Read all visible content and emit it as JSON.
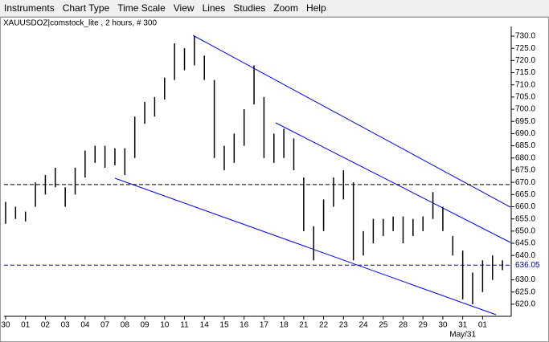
{
  "menu": [
    "Instruments",
    "Chart Type",
    "Time Scale",
    "View",
    "Lines",
    "Studies",
    "Zoom",
    "Help"
  ],
  "chart_data": {
    "type": "ohlc",
    "title": "XAUUSDOZ|comstock_lite , 2 hours, # 300",
    "x": [
      0,
      0.5,
      1,
      1.5,
      2,
      2.5,
      3,
      3.5,
      4,
      4.5,
      5,
      5.5,
      6,
      6.5,
      7,
      7.5,
      8,
      8.5,
      9,
      9.5,
      10,
      10.5,
      11,
      11.5,
      12,
      12.5,
      13,
      13.5,
      14,
      14.5,
      15,
      15.5,
      16,
      16.5,
      17,
      17.5,
      18,
      18.5,
      19,
      19.5,
      20,
      20.5,
      21,
      21.5,
      22,
      22.5,
      23,
      23.5,
      24,
      24.5,
      25
    ],
    "high": [
      662,
      660,
      658,
      670,
      673,
      676,
      668,
      676,
      683,
      685,
      685,
      684,
      684,
      697,
      703,
      705,
      713,
      727,
      725,
      730,
      722,
      712,
      685,
      690,
      700,
      718,
      705,
      690,
      692,
      688,
      672,
      652,
      663,
      672,
      675,
      670,
      650,
      655,
      655,
      656,
      656,
      655,
      656,
      666,
      660,
      648,
      642,
      633,
      638,
      640,
      638
    ],
    "low": [
      653,
      655,
      654,
      660,
      665,
      668,
      660,
      665,
      672,
      678,
      676,
      677,
      673,
      680,
      694,
      697,
      704,
      712,
      716,
      718,
      712,
      680,
      675,
      678,
      685,
      702,
      680,
      678,
      680,
      675,
      650,
      638,
      650,
      660,
      663,
      638,
      640,
      645,
      648,
      650,
      645,
      648,
      650,
      655,
      650,
      640,
      622,
      620,
      625,
      630,
      634
    ],
    "color": "#000000",
    "xlim": [
      -0.08,
      25.4
    ],
    "xticks": [
      {
        "value": 0,
        "label": "30"
      },
      {
        "value": 1,
        "label": "01"
      },
      {
        "value": 2,
        "label": "02"
      },
      {
        "value": 3,
        "label": "03"
      },
      {
        "value": 4,
        "label": "04"
      },
      {
        "value": 5,
        "label": "07"
      },
      {
        "value": 6,
        "label": "08"
      },
      {
        "value": 7,
        "label": "09"
      },
      {
        "value": 8,
        "label": "10"
      },
      {
        "value": 9,
        "label": "11"
      },
      {
        "value": 10,
        "label": "14"
      },
      {
        "value": 11,
        "label": "15"
      },
      {
        "value": 12,
        "label": "16"
      },
      {
        "value": 13,
        "label": "17"
      },
      {
        "value": 14,
        "label": "18"
      },
      {
        "value": 15,
        "label": "21"
      },
      {
        "value": 16,
        "label": "22"
      },
      {
        "value": 17,
        "label": "23"
      },
      {
        "value": 18,
        "label": "24"
      },
      {
        "value": 19,
        "label": "25"
      },
      {
        "value": 20,
        "label": "28"
      },
      {
        "value": 21,
        "label": "29"
      },
      {
        "value": 22,
        "label": "30"
      },
      {
        "value": 23,
        "label": "31"
      },
      {
        "value": 24,
        "label": "01"
      }
    ],
    "month_label": "May/31",
    "ylim": [
      615.7,
      732.3
    ],
    "yticks": [
      {
        "value": 620,
        "label": "620.0"
      },
      {
        "value": 625,
        "label": "625.0"
      },
      {
        "value": 630,
        "label": "630.0"
      },
      {
        "value": 640,
        "label": "640.0"
      },
      {
        "value": 645,
        "label": "645.0"
      },
      {
        "value": 650,
        "label": "650.0"
      },
      {
        "value": 655,
        "label": "655.0"
      },
      {
        "value": 660,
        "label": "660.0"
      },
      {
        "value": 665,
        "label": "665.0"
      },
      {
        "value": 670,
        "label": "670.0"
      },
      {
        "value": 675,
        "label": "675.0"
      },
      {
        "value": 680,
        "label": "680.0"
      },
      {
        "value": 685,
        "label": "685.0"
      },
      {
        "value": 690,
        "label": "690.0"
      },
      {
        "value": 695,
        "label": "695.0"
      },
      {
        "value": 700,
        "label": "700.0"
      },
      {
        "value": 705,
        "label": "705.0"
      },
      {
        "value": 710,
        "label": "710.0"
      },
      {
        "value": 715,
        "label": "715.0"
      },
      {
        "value": 720,
        "label": "720.0"
      },
      {
        "value": 725,
        "label": "725.0"
      },
      {
        "value": 730,
        "label": "730.0"
      }
    ],
    "last_price": {
      "value": 636.05,
      "label": "636.05"
    },
    "reference_line": 669.1
  }
}
